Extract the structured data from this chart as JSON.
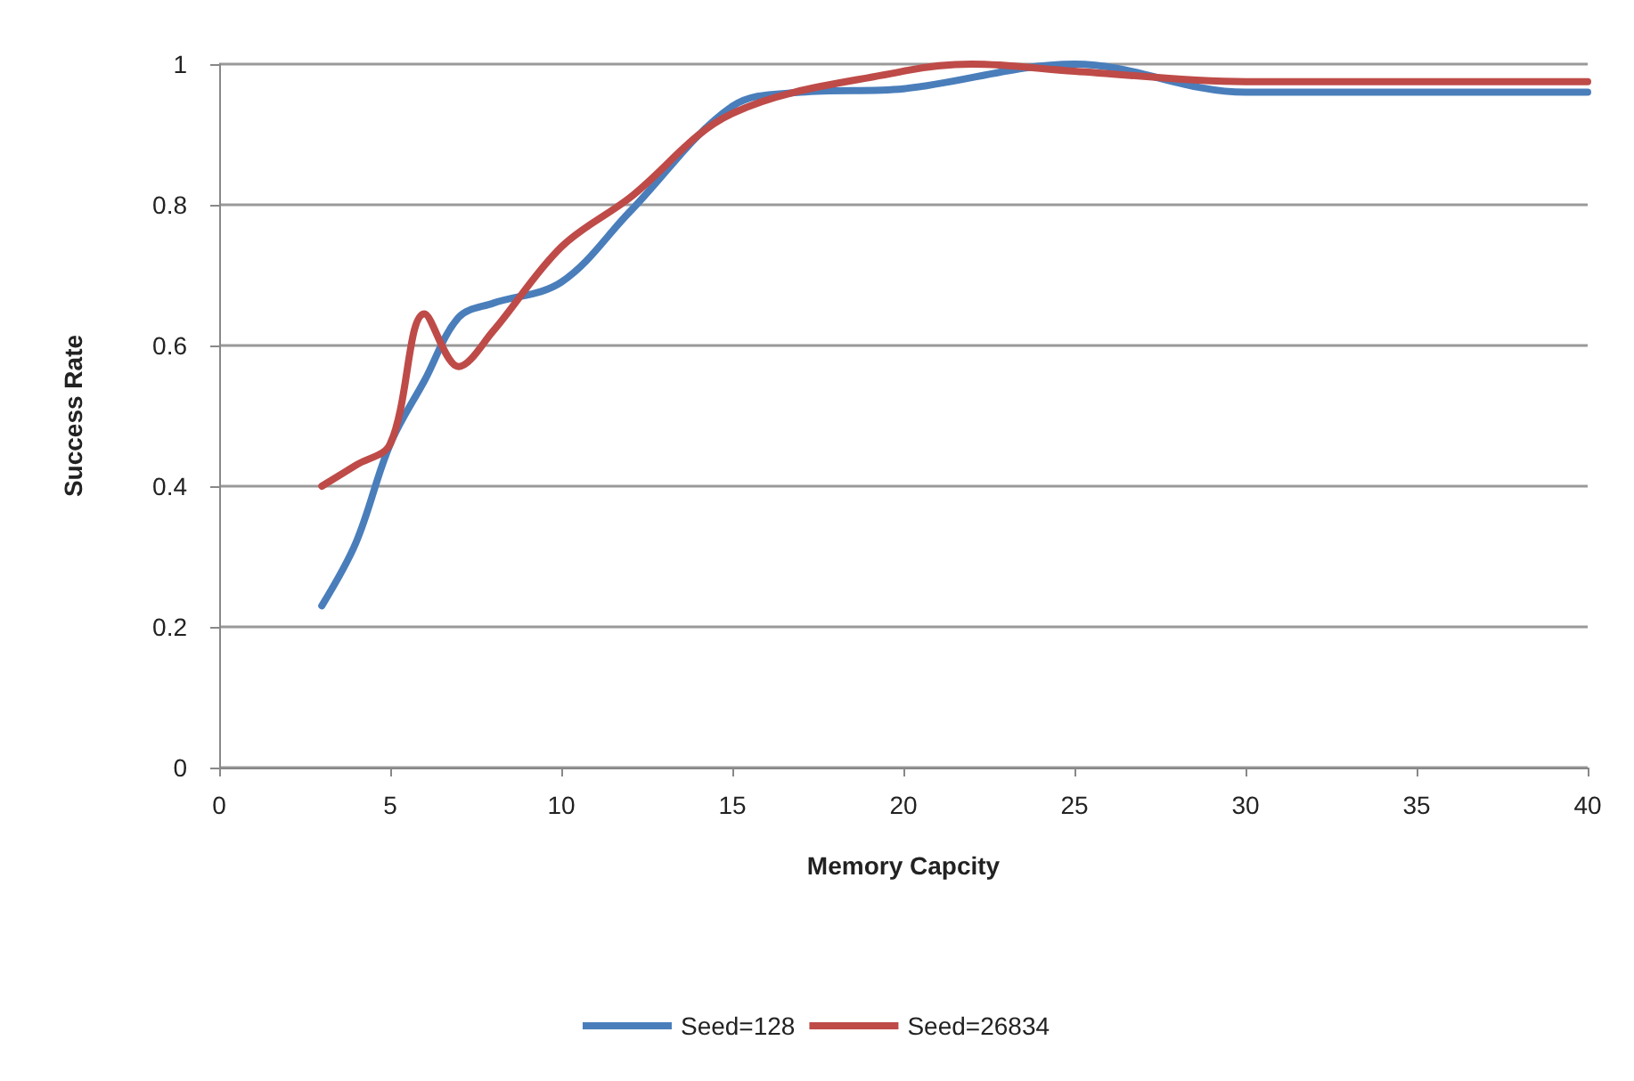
{
  "chart_data": {
    "type": "line",
    "xlabel": "Memory Capcity",
    "ylabel": "Success Rate",
    "xlim": [
      0,
      40
    ],
    "xticks": [
      0,
      5,
      10,
      15,
      20,
      25,
      30,
      35,
      40
    ],
    "ylim": [
      0,
      1
    ],
    "yticks": [
      0,
      0.2,
      0.4,
      0.6,
      0.8,
      1
    ],
    "grid": "y",
    "legend": "bottom",
    "marker": "none",
    "line_style": "solid",
    "series": [
      {
        "name": "Seed=128",
        "color": "#4a7ebb",
        "x": [
          3,
          4,
          5,
          6,
          7,
          8,
          10,
          12,
          15,
          17,
          20,
          25,
          30,
          40
        ],
        "values": [
          0.23,
          0.32,
          0.46,
          0.55,
          0.64,
          0.66,
          0.69,
          0.79,
          0.94,
          0.96,
          0.965,
          1.0,
          0.96,
          0.96
        ]
      },
      {
        "name": "Seed=26834",
        "color": "#be4b48",
        "x": [
          3,
          4,
          5,
          6,
          7,
          8,
          10,
          12,
          15,
          20,
          22,
          25,
          30,
          40
        ],
        "values": [
          0.4,
          0.43,
          0.46,
          0.645,
          0.57,
          0.62,
          0.74,
          0.81,
          0.93,
          0.99,
          1.0,
          0.99,
          0.975,
          0.975
        ]
      }
    ]
  }
}
